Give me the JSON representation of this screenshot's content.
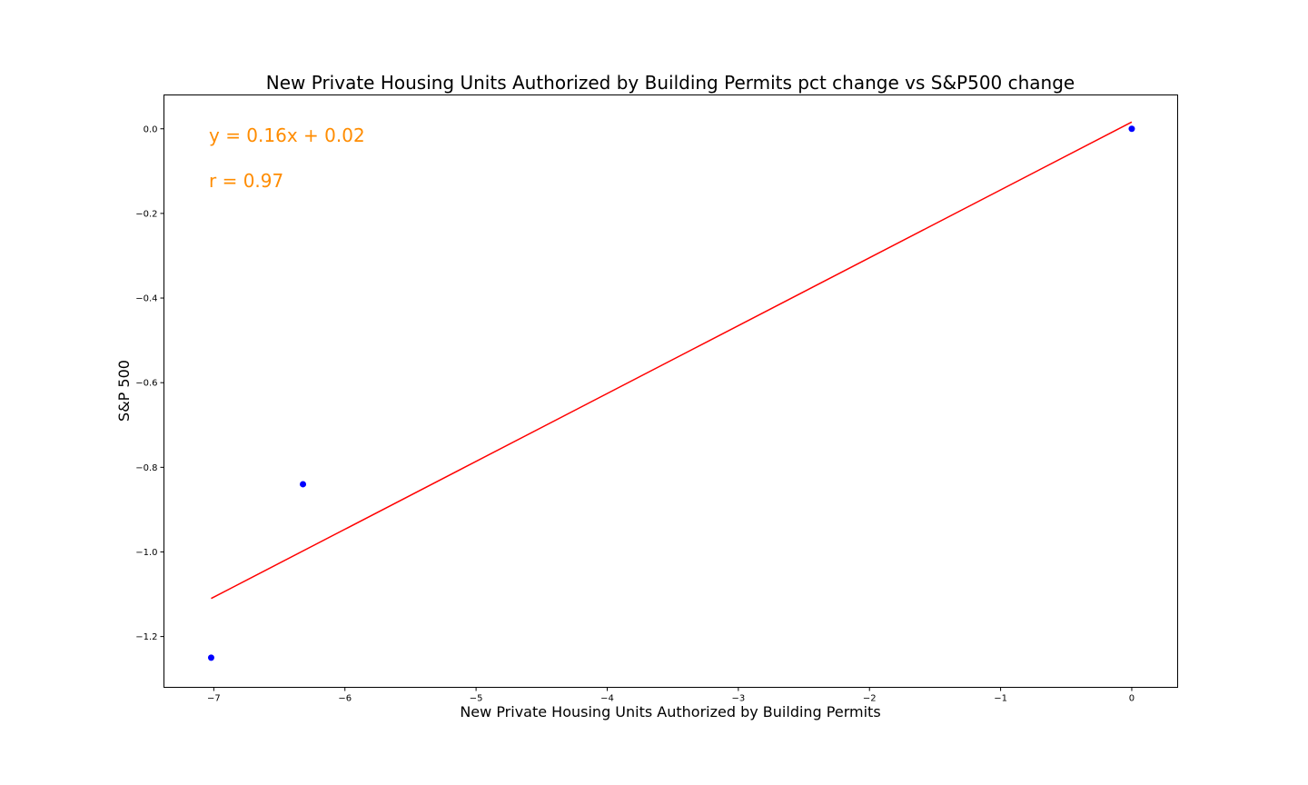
{
  "chart_data": {
    "type": "scatter",
    "title": "New Private Housing Units Authorized by Building Permits pct change vs S&P500 change",
    "xlabel": "New Private Housing Units Authorized by Building Permits",
    "ylabel": "S&P 500",
    "xlim": [
      -7.38,
      0.35
    ],
    "ylim": [
      -1.32,
      0.08
    ],
    "x_ticks": [
      -7,
      -6,
      -5,
      -4,
      -3,
      -2,
      -1,
      0
    ],
    "x_tick_labels": [
      "−7",
      "−6",
      "−5",
      "−4",
      "−3",
      "−2",
      "−1",
      "0"
    ],
    "y_ticks": [
      0.0,
      -0.2,
      -0.4,
      -0.6,
      -0.8,
      -1.0,
      -1.2
    ],
    "y_tick_labels": [
      "0.0",
      "−0.2",
      "−0.4",
      "−0.6",
      "−0.8",
      "−1.0",
      "−1.2"
    ],
    "grid": false,
    "points": [
      {
        "x": -7.02,
        "y": -1.25
      },
      {
        "x": -6.32,
        "y": -0.84
      },
      {
        "x": 0.0,
        "y": 0.0
      }
    ],
    "regression": {
      "slope": 0.16,
      "intercept": 0.02,
      "x_range": [
        -7.02,
        0.0
      ],
      "y_at_start": -1.11,
      "y_at_end": 0.016,
      "equation_label": "y = 0.16x + 0.02",
      "r_label": "r = 0.97"
    },
    "colors": {
      "points": "#0000ff",
      "line": "#ff0000",
      "annotation": "#ff8c00",
      "axes": "#000000"
    }
  }
}
